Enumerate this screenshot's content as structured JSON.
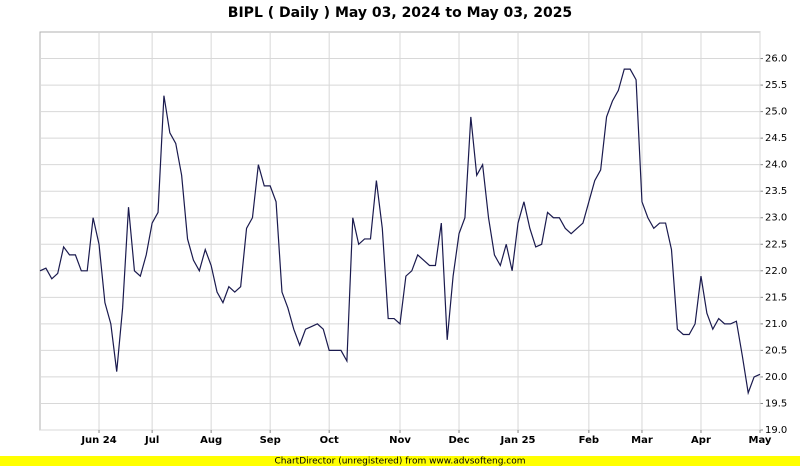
{
  "chart_data": {
    "type": "line",
    "title": "BIPL ( Daily ) May 03, 2024 to May 03, 2025",
    "footer": "ChartDirector (unregistered) from www.advsofteng.com",
    "categories": [
      null,
      null,
      null,
      null,
      null,
      null,
      null,
      null,
      null,
      null,
      "Jun 24",
      null,
      null,
      null,
      null,
      null,
      null,
      null,
      null,
      "Jul",
      null,
      null,
      null,
      null,
      null,
      null,
      null,
      null,
      null,
      "Aug",
      null,
      null,
      null,
      null,
      null,
      null,
      null,
      null,
      null,
      "Sep",
      null,
      null,
      null,
      null,
      null,
      null,
      null,
      null,
      null,
      "Oct",
      null,
      null,
      null,
      null,
      null,
      null,
      null,
      null,
      null,
      null,
      null,
      "Nov",
      null,
      null,
      null,
      null,
      null,
      null,
      null,
      null,
      null,
      "Dec",
      null,
      null,
      null,
      null,
      null,
      null,
      null,
      null,
      null,
      "Jan 25",
      null,
      null,
      null,
      null,
      null,
      null,
      null,
      null,
      null,
      null,
      null,
      "Feb",
      null,
      null,
      null,
      null,
      null,
      null,
      null,
      null,
      "Mar",
      null,
      null,
      null,
      null,
      null,
      null,
      null,
      null,
      null,
      "Apr",
      null,
      null,
      null,
      null,
      null,
      null,
      null,
      null,
      null,
      "May"
    ],
    "series": [
      {
        "name": "BIPL",
        "color": "#1a1a4e",
        "values": [
          22.0,
          22.05,
          21.85,
          21.95,
          22.45,
          22.3,
          22.3,
          22.0,
          22.0,
          23.0,
          22.5,
          21.4,
          21.0,
          20.1,
          21.3,
          23.2,
          22.0,
          21.9,
          22.3,
          22.9,
          23.1,
          25.3,
          24.6,
          24.4,
          23.8,
          22.6,
          22.2,
          22.0,
          22.4,
          22.1,
          21.6,
          21.4,
          21.7,
          21.6,
          21.7,
          22.8,
          23.0,
          24.0,
          23.6,
          23.6,
          23.3,
          21.6,
          21.3,
          20.9,
          20.6,
          20.9,
          20.95,
          21.0,
          20.9,
          20.5,
          20.5,
          20.5,
          20.3,
          23.0,
          22.5,
          22.6,
          22.6,
          23.7,
          22.8,
          21.1,
          21.1,
          21.0,
          21.9,
          22.0,
          22.3,
          22.2,
          22.1,
          22.1,
          22.9,
          20.7,
          21.9,
          22.7,
          23.0,
          24.9,
          23.8,
          24.0,
          23.0,
          22.3,
          22.1,
          22.5,
          22.0,
          22.9,
          23.3,
          22.8,
          22.45,
          22.5,
          23.1,
          23.0,
          23.0,
          22.8,
          22.7,
          22.8,
          22.9,
          23.3,
          23.7,
          23.9,
          24.9,
          25.2,
          25.4,
          25.8,
          25.8,
          25.6,
          23.3,
          23.0,
          22.8,
          22.9,
          22.9,
          22.4,
          20.9,
          20.8,
          20.8,
          21.0,
          21.9,
          21.2,
          20.9,
          21.1,
          21.0,
          21.0,
          21.05,
          20.4,
          19.7,
          20.0,
          20.05
        ]
      }
    ],
    "ylim": [
      19,
      26.5
    ],
    "yticks": [
      {
        "value": 19,
        "label": "19.0"
      },
      19.5,
      {
        "value": 20,
        "label": "20.0"
      },
      20.5,
      {
        "value": 21,
        "label": "21.0"
      },
      21.5,
      {
        "value": 22,
        "label": "22.0"
      },
      22.5,
      {
        "value": 23,
        "label": "23.0"
      },
      23.5,
      {
        "value": 24,
        "label": "24.0"
      },
      24.5,
      {
        "value": 25,
        "label": "25.0"
      },
      25.5,
      {
        "value": 26,
        "label": "26.0"
      }
    ],
    "grid": true
  }
}
